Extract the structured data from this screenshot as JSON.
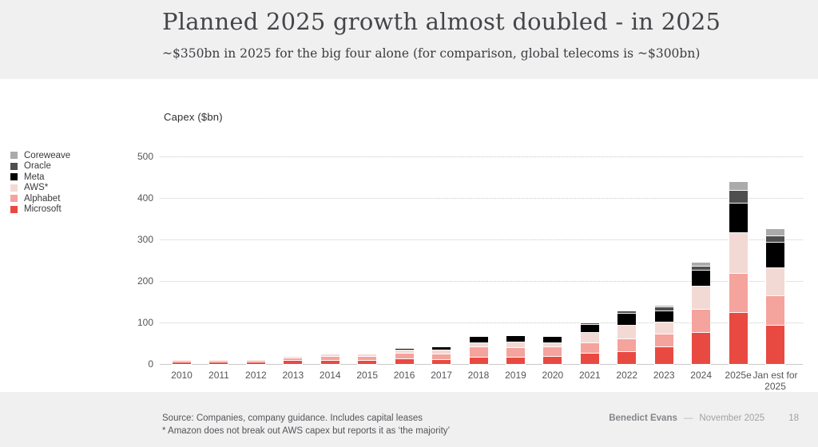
{
  "header": {
    "title": "Planned 2025 growth almost doubled - in 2025",
    "subtitle": "~$350bn in 2025 for the big four alone (for comparison, global telecoms is ~$300bn)"
  },
  "chart": {
    "axis_title": "Capex ($bn)"
  },
  "chart_data": {
    "type": "bar",
    "stacked": true,
    "title": "Capex ($bn)",
    "xlabel": "",
    "ylabel": "Capex ($bn)",
    "ylim": [
      0,
      500
    ],
    "yticks": [
      0,
      100,
      200,
      300,
      400,
      500
    ],
    "grid": "horizontal-dotted",
    "legend_position": "left",
    "legend_order_top_to_bottom": [
      "Coreweave",
      "Oracle",
      "Meta",
      "AWS*",
      "Alphabet",
      "Microsoft"
    ],
    "categories": [
      "2010",
      "2011",
      "2012",
      "2013",
      "2014",
      "2015",
      "2016",
      "2017",
      "2018",
      "2019",
      "2020",
      "2021",
      "2022",
      "2023",
      "2024",
      "2025e",
      "Jan est for 2025"
    ],
    "series": [
      {
        "name": "Microsoft",
        "color": "#e84a42",
        "values": [
          2,
          2.5,
          3,
          6,
          6,
          7,
          11,
          9,
          14,
          14,
          17,
          24,
          28,
          39,
          75,
          122,
          91
        ]
      },
      {
        "name": "Alphabet",
        "color": "#f4a39d",
        "values": [
          4,
          3.5,
          3.5,
          7,
          11,
          10,
          13,
          13,
          25,
          24,
          22,
          25,
          31,
          31,
          55,
          95,
          72
        ]
      },
      {
        "name": "AWS*",
        "color": "#f3d9d4",
        "values": [
          0,
          1.5,
          2,
          4,
          5,
          5,
          7,
          10,
          11,
          13,
          10,
          26,
          32,
          29,
          55,
          98,
          67
        ]
      },
      {
        "name": "Meta",
        "color": "#000000",
        "values": [
          0,
          0,
          0,
          0,
          0,
          0,
          4.5,
          7,
          14,
          15,
          15,
          19,
          30,
          28,
          39,
          70,
          61
        ]
      },
      {
        "name": "Oracle",
        "color": "#4f4f4f",
        "values": [
          0,
          0,
          0,
          0,
          0,
          0,
          0,
          0,
          0,
          0,
          0,
          3,
          5,
          8,
          10,
          32,
          16
        ]
      },
      {
        "name": "Coreweave",
        "color": "#ababab",
        "values": [
          0,
          0,
          0,
          0,
          0,
          0,
          0,
          0,
          0,
          0,
          0,
          0,
          2,
          4,
          9,
          20,
          18
        ]
      }
    ],
    "totals_note": {
      "2024": 243,
      "2025e": 437,
      "Jan est for 2025": 325
    }
  },
  "footer": {
    "source_line1": "Source: Companies, company guidance. Includes capital leases",
    "source_line2": "* Amazon does not break out AWS capex but reports it as ‘the majority’",
    "author": "Benedict Evans",
    "separator": "—",
    "date": "November 2025",
    "page": "18"
  }
}
